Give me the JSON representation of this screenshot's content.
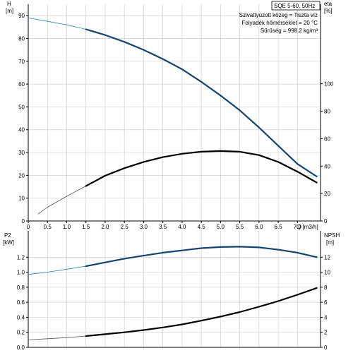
{
  "header": {
    "model": "SQE 5-60, 50Hz",
    "conditions": [
      "Szivattyúzott közeg = Tiszta víz",
      "Folyadék hőmérséklet = 20 °C",
      "Sűrűség = 998.2 kg/m³"
    ]
  },
  "colors": {
    "curve_main": "#15456e",
    "curve_highlight": "#2c80b8",
    "curve_black": "#000000",
    "grid": "#d0d0d0",
    "axis": "#000000"
  },
  "chart_data": [
    {
      "type": "line",
      "panel": "top",
      "x_label": "Q [m3/h]",
      "left_axis": {
        "name": "H",
        "unit": "[m]",
        "ylim": [
          0,
          95
        ],
        "ticks": [
          "0",
          "10",
          "20",
          "30",
          "40",
          "50",
          "60",
          "70",
          "80",
          "90"
        ]
      },
      "right_axis": {
        "name": "eta",
        "unit": "[%]",
        "ylim": [
          0,
          158
        ],
        "ticks": [
          "0",
          "20",
          "40",
          "60",
          "80",
          "100"
        ]
      },
      "x_ticks": [
        "0",
        "0.5",
        "1.0",
        "1.5",
        "2.0",
        "2.5",
        "3.0",
        "3.5",
        "4.0",
        "4.5",
        "5.0",
        "5.5",
        "6.0",
        "6.5",
        "7.0"
      ],
      "xlim": [
        0,
        7.6
      ],
      "grid": true,
      "series": [
        {
          "axis": "left",
          "style": "blue",
          "x": [
            0,
            0.5,
            1.0,
            1.5,
            2.0,
            2.5,
            3.0,
            3.5,
            4.0,
            4.5,
            5.0,
            5.5,
            6.0,
            6.5,
            7.0,
            7.5
          ],
          "y": [
            89,
            87.5,
            86,
            84,
            81.5,
            78.5,
            75,
            71,
            66.5,
            61,
            55,
            48.5,
            41,
            33,
            25,
            19.5
          ],
          "operating_range": [
            1.5,
            7.5
          ]
        },
        {
          "axis": "right",
          "style": "black",
          "x": [
            0.25,
            0.5,
            1.0,
            1.5,
            2.0,
            2.5,
            3.0,
            3.5,
            4.0,
            4.5,
            5.0,
            5.5,
            6.0,
            6.5,
            7.0,
            7.5
          ],
          "y": [
            5,
            10,
            18,
            25.5,
            33,
            38.5,
            43,
            46.5,
            49,
            50.5,
            51,
            50.5,
            48,
            43,
            36,
            28
          ],
          "operating_range": [
            1.5,
            7.5
          ]
        }
      ]
    },
    {
      "type": "line",
      "panel": "bottom",
      "left_axis": {
        "name": "P2",
        "unit": "[kW]",
        "ylim": [
          0,
          1.55
        ],
        "ticks": [
          "0.0",
          "0.2",
          "0.4",
          "0.6",
          "0.8",
          "1.0",
          "1.2"
        ]
      },
      "right_axis": {
        "name": "NPSH",
        "unit": "[m]",
        "ylim": [
          0,
          15.5
        ],
        "ticks": [
          "0",
          "2",
          "4",
          "6",
          "8",
          "10",
          "12"
        ]
      },
      "xlim": [
        0,
        7.6
      ],
      "grid": true,
      "series": [
        {
          "axis": "left",
          "style": "blue",
          "x": [
            0,
            0.5,
            1.0,
            1.5,
            2.0,
            2.5,
            3.0,
            3.5,
            4.0,
            4.5,
            5.0,
            5.5,
            6.0,
            6.5,
            7.0,
            7.5
          ],
          "y": [
            0.97,
            1.0,
            1.04,
            1.08,
            1.13,
            1.18,
            1.22,
            1.26,
            1.29,
            1.32,
            1.335,
            1.34,
            1.33,
            1.3,
            1.26,
            1.2
          ],
          "operating_range": [
            1.5,
            7.5
          ]
        },
        {
          "axis": "right",
          "style": "black",
          "x": [
            0,
            0.5,
            1.0,
            1.5,
            2.0,
            2.5,
            3.0,
            3.5,
            4.0,
            4.5,
            5.0,
            5.5,
            6.0,
            6.5,
            7.0,
            7.5
          ],
          "y": [
            1.0,
            1.15,
            1.3,
            1.5,
            1.75,
            2.0,
            2.3,
            2.65,
            3.05,
            3.55,
            4.1,
            4.7,
            5.4,
            6.15,
            7.0,
            7.9
          ],
          "operating_range": [
            1.5,
            7.5
          ]
        }
      ]
    }
  ]
}
